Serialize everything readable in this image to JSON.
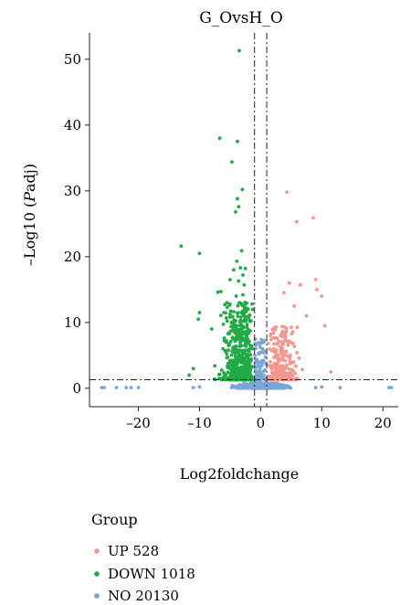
{
  "chart_data": {
    "type": "scatter",
    "title": "G_OvsH_O",
    "xlabel": "Log2foldchange",
    "ylabel_prefix": "–Log10 (",
    "ylabel_italic": "P",
    "ylabel_suffix": "adj)",
    "xlim": [
      -28,
      22.5
    ],
    "ylim": [
      -2.8,
      54
    ],
    "xticks": [
      -20,
      -10,
      0,
      10,
      20
    ],
    "xtick_labels": [
      "–20",
      "–10",
      "0",
      "10",
      "20"
    ],
    "yticks": [
      0,
      10,
      20,
      30,
      40,
      50
    ],
    "ytick_labels": [
      "0",
      "10",
      "20",
      "30",
      "40",
      "50"
    ],
    "thresholds": {
      "log2fc": [
        -1,
        1
      ],
      "neg_log10_padj": 1.3
    },
    "grid": false,
    "legend": {
      "title": "Group",
      "position": "bottom-left",
      "entries": [
        {
          "label": "UP 528",
          "color": "#f4978e"
        },
        {
          "label": "DOWN 1018",
          "color": "#22aa44"
        },
        {
          "label": "NO 20130",
          "color": "#7aa6d6"
        }
      ]
    },
    "series": [
      {
        "key": "up",
        "color": "#f4978e",
        "count": 528,
        "highlight_points": [
          [
            4.3,
            29.8
          ],
          [
            8.6,
            25.9
          ],
          [
            5.9,
            25.3
          ],
          [
            9.0,
            16.5
          ],
          [
            4.7,
            16.0
          ],
          [
            6.5,
            15.7
          ],
          [
            9.2,
            15.0
          ],
          [
            3.8,
            14.5
          ],
          [
            10.0,
            14.0
          ],
          [
            5.5,
            12.5
          ],
          [
            7.5,
            11.0
          ],
          [
            10.5,
            9.5
          ],
          [
            11.5,
            2.5
          ]
        ]
      },
      {
        "key": "down",
        "color": "#22aa44",
        "count": 1018,
        "highlight_points": [
          [
            -3.5,
            51.3
          ],
          [
            -6.7,
            38.0
          ],
          [
            -3.8,
            37.5
          ],
          [
            -4.7,
            34.4
          ],
          [
            -3.0,
            30.2
          ],
          [
            -3.8,
            28.8
          ],
          [
            -3.6,
            27.6
          ],
          [
            -4.1,
            26.8
          ],
          [
            -13.0,
            21.6
          ],
          [
            -10.0,
            20.5
          ],
          [
            -3.1,
            20.9
          ],
          [
            -3.9,
            19.3
          ],
          [
            -3.3,
            18.3
          ],
          [
            -2.5,
            18.2
          ],
          [
            -4.4,
            18.0
          ],
          [
            -2.9,
            17.2
          ],
          [
            -5.0,
            16.5
          ],
          [
            -3.6,
            16.3
          ],
          [
            -2.7,
            15.7
          ],
          [
            -4.0,
            14.0
          ],
          [
            -6.5,
            14.7
          ],
          [
            -7.0,
            14.6
          ],
          [
            -2.9,
            14.2
          ],
          [
            -5.5,
            13.0
          ],
          [
            -10.0,
            11.5
          ],
          [
            -10.2,
            10.5
          ],
          [
            -8.0,
            9.0
          ],
          [
            -11.0,
            3.0
          ],
          [
            -11.7,
            2.0
          ]
        ]
      },
      {
        "key": "no",
        "color": "#7aa6d6",
        "count": 20130,
        "highlight_points": [
          [
            -26.0,
            0.1
          ],
          [
            -25.6,
            0.1
          ],
          [
            -23.6,
            0.1
          ],
          [
            -22.0,
            0.1
          ],
          [
            -21.2,
            0.1
          ],
          [
            -20.0,
            0.1
          ],
          [
            -11.0,
            0.1
          ],
          [
            -10.0,
            0.2
          ],
          [
            9.0,
            0.1
          ],
          [
            10.0,
            0.2
          ],
          [
            13.0,
            0.1
          ],
          [
            21.0,
            0.1
          ],
          [
            21.4,
            0.1
          ]
        ]
      }
    ]
  }
}
